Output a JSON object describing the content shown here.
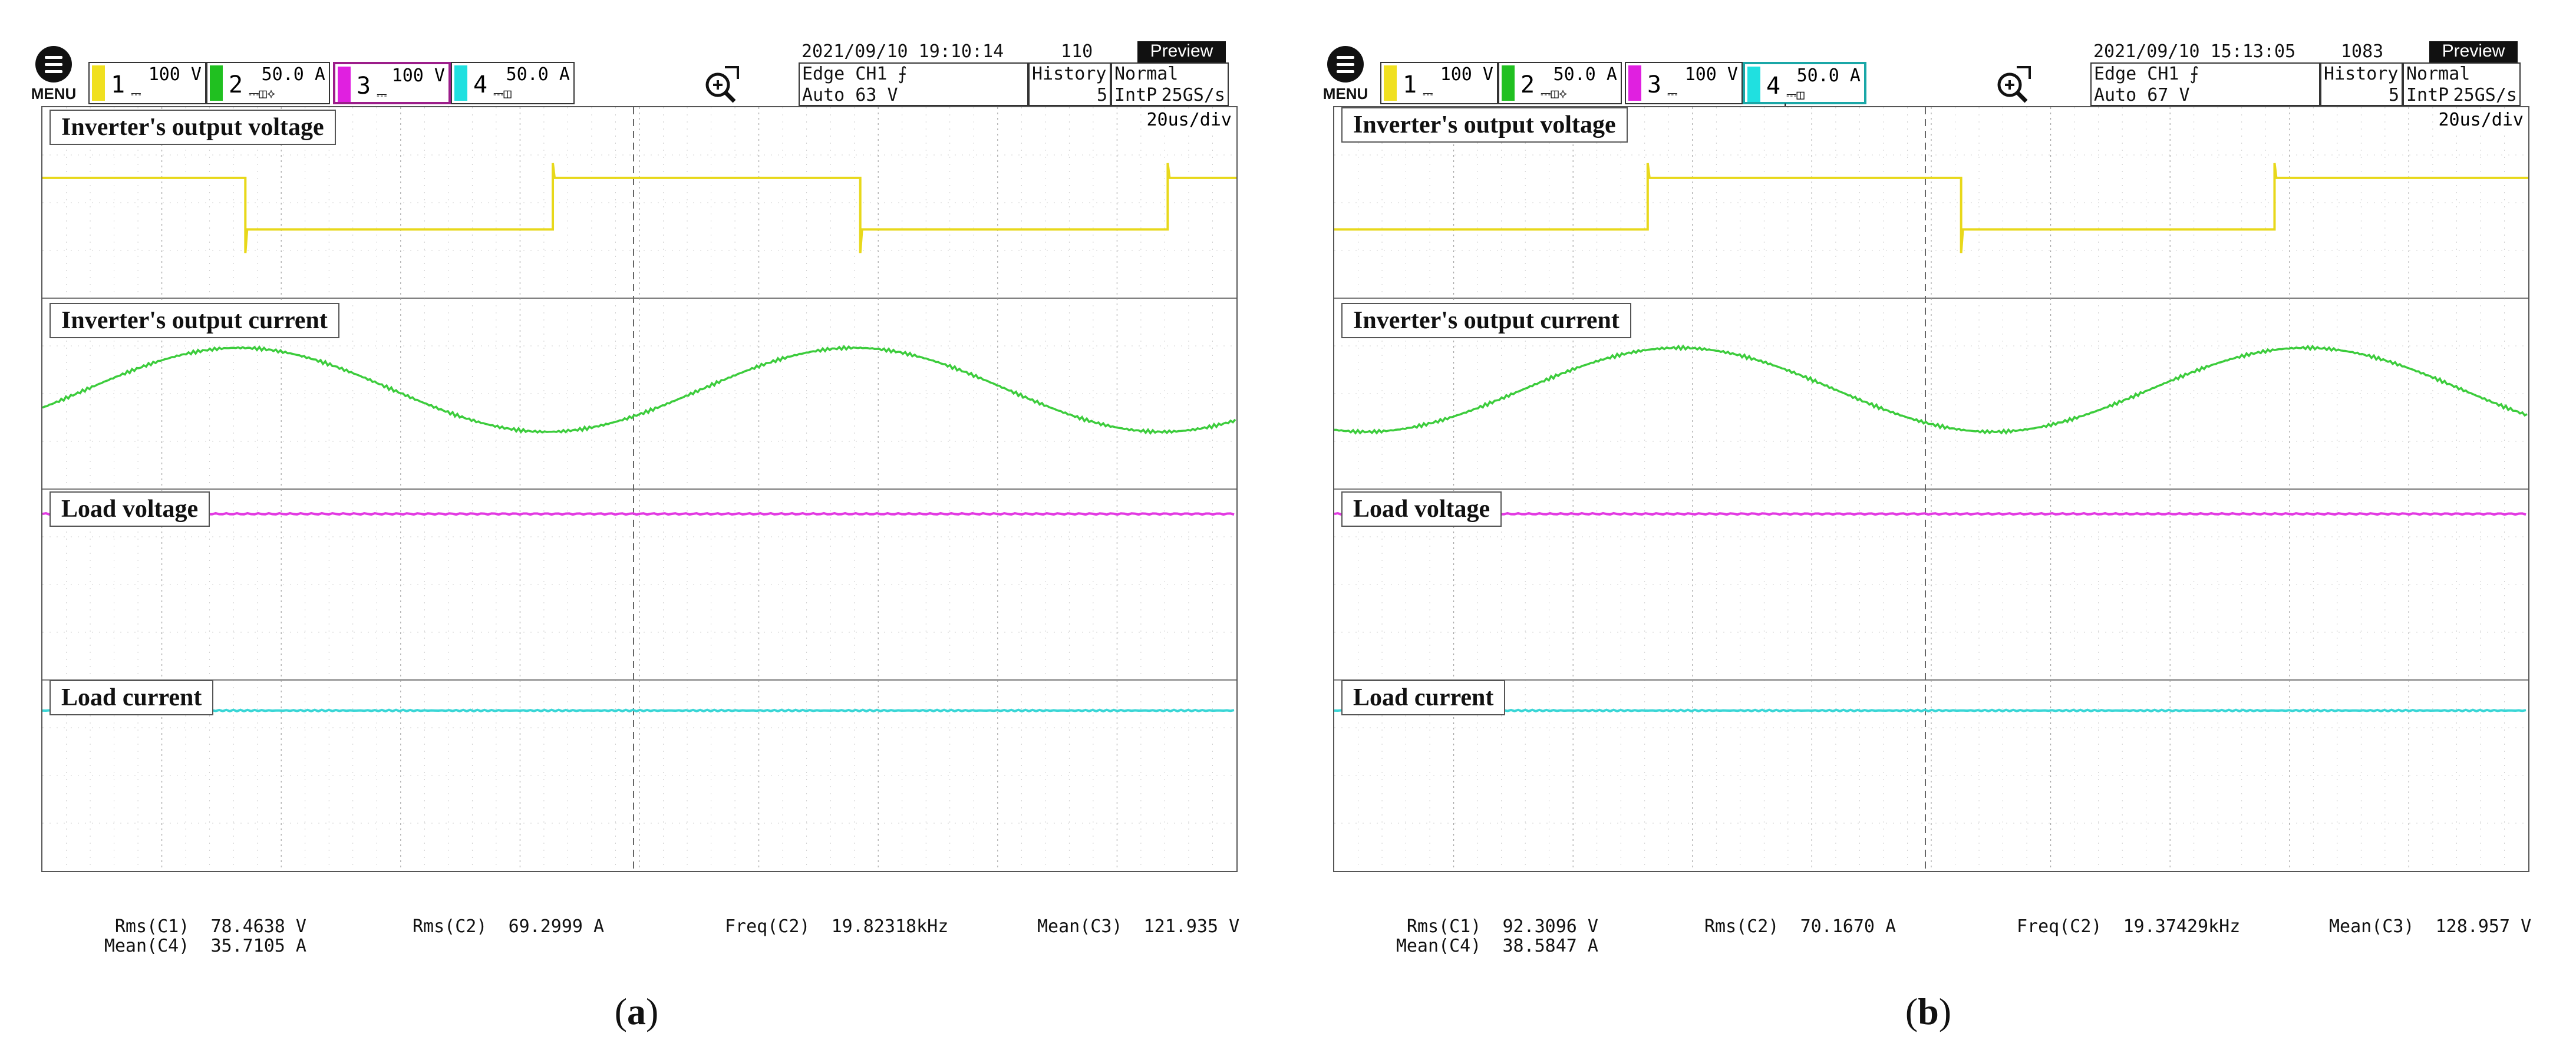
{
  "panels": [
    {
      "id": "a",
      "caption": "a",
      "menu_label": "MENU",
      "channels": [
        {
          "num": "1",
          "scale": "100 V",
          "color": "#f0e020"
        },
        {
          "num": "2",
          "scale": "50.0 A",
          "color": "#20c020"
        },
        {
          "num": "3",
          "scale": "100 V",
          "color": "#e020e0"
        },
        {
          "num": "4",
          "scale": "50.0 A",
          "color": "#20e0e0"
        }
      ],
      "datetime": "2021/09/10 19:10:14",
      "count": "110",
      "preview": "Preview",
      "trigger_line1": "Edge CH1 ⨍",
      "trigger_line2": "Auto 63 V",
      "history_label": "History",
      "history_value": "5",
      "mode": "Normal",
      "interp": "IntP",
      "rate": "25GS/s",
      "timebase": "20us/div",
      "labels": {
        "inv_voltage": "Inverter's output voltage",
        "inv_current": "Inverter's output current",
        "load_voltage": "Load voltage",
        "load_current": "Load current"
      },
      "measurements": {
        "rms_c1_label": "Rms(C1)",
        "rms_c1": "78.4638 V",
        "mean_c4_label": "Mean(C4)",
        "mean_c4": "35.7105 A",
        "rms_c2_label": "Rms(C2)",
        "rms_c2": "69.2999 A",
        "freq_c2_label": "Freq(C2)",
        "freq_c2": "19.82318kHz",
        "mean_c3_label": "Mean(C3)",
        "mean_c3": "121.935 V"
      }
    },
    {
      "id": "b",
      "caption": "b",
      "menu_label": "MENU",
      "channels": [
        {
          "num": "1",
          "scale": "100 V",
          "color": "#f0e020"
        },
        {
          "num": "2",
          "scale": "50.0 A",
          "color": "#20c020"
        },
        {
          "num": "3",
          "scale": "100 V",
          "color": "#e020e0"
        },
        {
          "num": "4",
          "scale": "50.0 A",
          "color": "#20e0e0"
        }
      ],
      "datetime": "2021/09/10 15:13:05",
      "count": "1083",
      "preview": "Preview",
      "trigger_line1": "Edge CH1 ⨍",
      "trigger_line2": "Auto 67 V",
      "history_label": "History",
      "history_value": "5",
      "mode": "Normal",
      "interp": "IntP",
      "rate": "25GS/s",
      "timebase": "20us/div",
      "labels": {
        "inv_voltage": "Inverter's output voltage",
        "inv_current": "Inverter's output current",
        "load_voltage": "Load voltage",
        "load_current": "Load current"
      },
      "measurements": {
        "rms_c1_label": "Rms(C1)",
        "rms_c1": "92.3096 V",
        "mean_c4_label": "Mean(C4)",
        "mean_c4": "38.5847 A",
        "rms_c2_label": "Rms(C2)",
        "rms_c2": "70.1670 A",
        "freq_c2_label": "Freq(C2)",
        "freq_c2": "19.37429kHz",
        "mean_c3_label": "Mean(C3)",
        "mean_c3": "128.957 V"
      }
    }
  ],
  "colors": {
    "ch1": "#e8d81a",
    "ch2": "#3ccc3c",
    "ch3": "#e23ae2",
    "ch4": "#3ad6d6",
    "grid": "#9a9a9a",
    "active_ch3_border": "#9c1d8a",
    "active_ch4_border": "#1aa7a7"
  },
  "icons": {
    "menu": "hamburger-menu-icon",
    "zoom": "zoom-in-icon"
  }
}
